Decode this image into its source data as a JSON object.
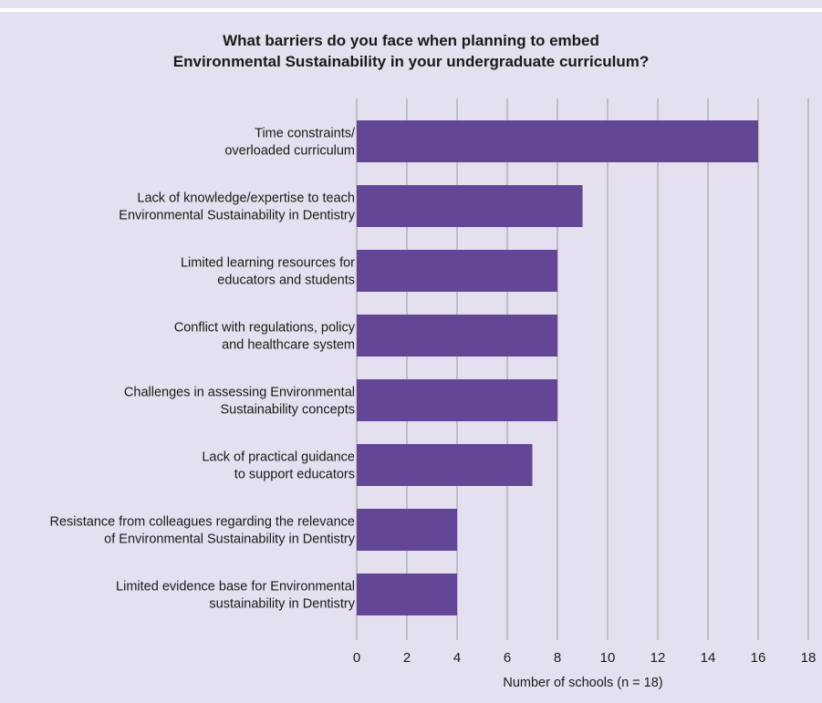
{
  "chart_data": {
    "type": "bar",
    "orientation": "horizontal",
    "title_lines": [
      "What barriers do you face when planning to embed",
      "Environmental Sustainability in your undergraduate curriculum?"
    ],
    "categories": [
      [
        "Time constraints/",
        "overloaded curriculum"
      ],
      [
        "Lack of knowledge/expertise to teach",
        "Environmental Sustainability in Dentistry"
      ],
      [
        "Limited learning resources for",
        "educators and students"
      ],
      [
        "Conflict with regulations, policy",
        "and healthcare system"
      ],
      [
        "Challenges in assessing Environmental",
        "Sustainability concepts"
      ],
      [
        "Lack of practical guidance",
        "to support educators"
      ],
      [
        "Resistance from colleagues regarding the relevance",
        "of Environmental Sustainability in Dentistry"
      ],
      [
        "Limited evidence base for Environmental",
        "sustainability in Dentistry"
      ]
    ],
    "values": [
      16,
      9,
      8,
      8,
      8,
      7,
      4,
      4
    ],
    "xlim": [
      0,
      18
    ],
    "xticks": [
      "0",
      "2",
      "4",
      "6",
      "8",
      "10",
      "12",
      "14",
      "16",
      "18"
    ],
    "xlabel": "Number of schools (n = 18)",
    "grid": "vertical",
    "bar_color": "#634796",
    "grid_color": "#9a9a9a",
    "background_color": "#e4e0ef"
  }
}
